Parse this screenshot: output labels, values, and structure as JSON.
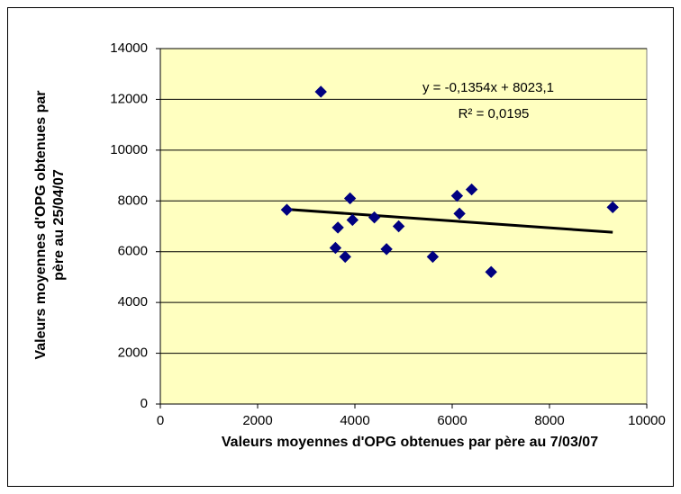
{
  "chart_data": {
    "type": "scatter",
    "xlabel": "Valeurs moyennes d'OPG obtenues par père au 7/03/07",
    "ylabel": [
      "Valeurs moyennes d'OPG obtenues par",
      "père au 25/04/07"
    ],
    "x": [
      2600,
      3300,
      3650,
      3600,
      3800,
      3900,
      3950,
      4400,
      4650,
      4900,
      5600,
      6100,
      6150,
      6400,
      6800,
      9300
    ],
    "series": [
      {
        "color": "#000080",
        "values": [
          7650,
          12300,
          6950,
          6150,
          5800,
          8100,
          7250,
          7350,
          6100,
          7000,
          5800,
          8200,
          7500,
          8450,
          5200,
          7750
        ]
      }
    ],
    "trendline": {
      "slope": -0.1354,
      "intercept": 8023.1,
      "label": "y = -0,1354x + 8023,1",
      "r2": 0.0195,
      "r2_label": "R² = 0,0195",
      "color": "#000000"
    },
    "xlim": [
      0,
      10000
    ],
    "xticks": [
      0,
      2000,
      4000,
      6000,
      8000,
      10000
    ],
    "ylim": [
      0,
      14000
    ],
    "yticks": [
      0,
      2000,
      4000,
      6000,
      8000,
      10000,
      12000,
      14000
    ],
    "grid": true
  }
}
